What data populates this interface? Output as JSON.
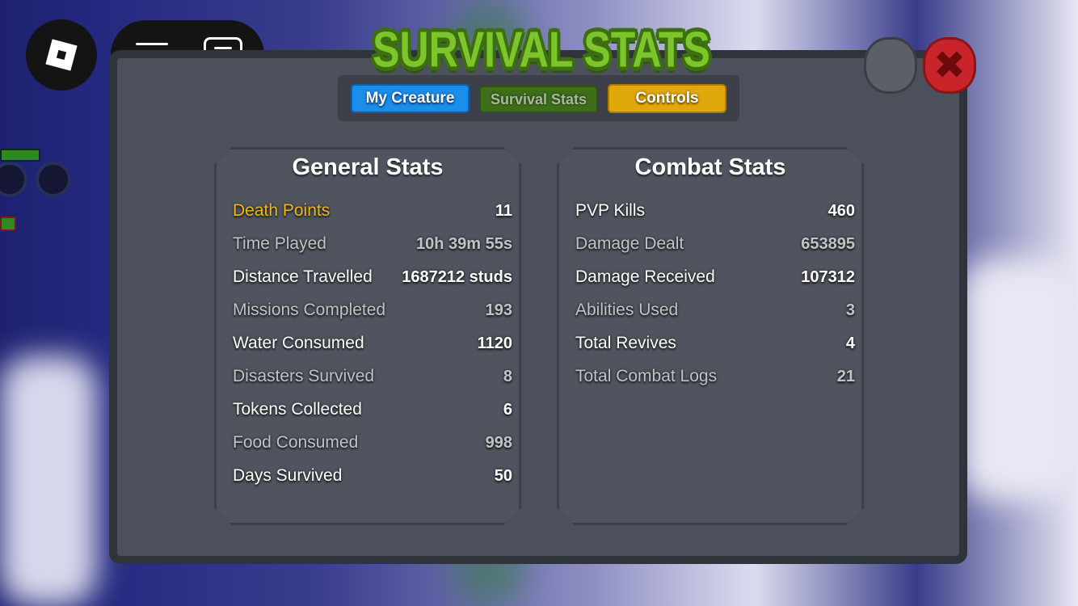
{
  "top_bar": {
    "roblox_icon": "roblox-logo-icon",
    "menu_icon": "hamburger-menu-icon",
    "chat_icon": "chat-icon"
  },
  "window": {
    "title": "SURVIVAL STATS"
  },
  "tabs": [
    {
      "label": "My Creature",
      "color": "#1a8ee8"
    },
    {
      "label": "Survival Stats",
      "color": "#3e6e1a",
      "active": true
    },
    {
      "label": "Controls",
      "color": "#e0a80a"
    }
  ],
  "header_buttons": [
    {
      "icon": "stone-button-icon",
      "color": "#5a5f68"
    },
    {
      "icon": "close-x-icon",
      "color": "#c8242a"
    }
  ],
  "general": {
    "heading": "General Stats",
    "rows": [
      {
        "label": "Death Points",
        "value": "11"
      },
      {
        "label": "Time Played",
        "value": "10h 39m 55s"
      },
      {
        "label": "Distance Travelled",
        "value": "1687212 studs"
      },
      {
        "label": "Missions Completed",
        "value": "193"
      },
      {
        "label": "Water Consumed",
        "value": "1120"
      },
      {
        "label": "Disasters Survived",
        "value": "8"
      },
      {
        "label": "Tokens Collected",
        "value": "6"
      },
      {
        "label": "Food Consumed",
        "value": "998"
      },
      {
        "label": "Days Survived",
        "value": "50"
      }
    ]
  },
  "combat": {
    "heading": "Combat Stats",
    "rows": [
      {
        "label": "PVP Kills",
        "value": "460"
      },
      {
        "label": "Damage Dealt",
        "value": "653895"
      },
      {
        "label": "Damage Received",
        "value": "107312"
      },
      {
        "label": "Abilities Used",
        "value": "3"
      },
      {
        "label": "Total Revives",
        "value": "4"
      },
      {
        "label": "Total Combat Logs",
        "value": "21"
      }
    ]
  },
  "colors": {
    "highlight": "#f0b51c",
    "title_green": "#7cc62c"
  }
}
